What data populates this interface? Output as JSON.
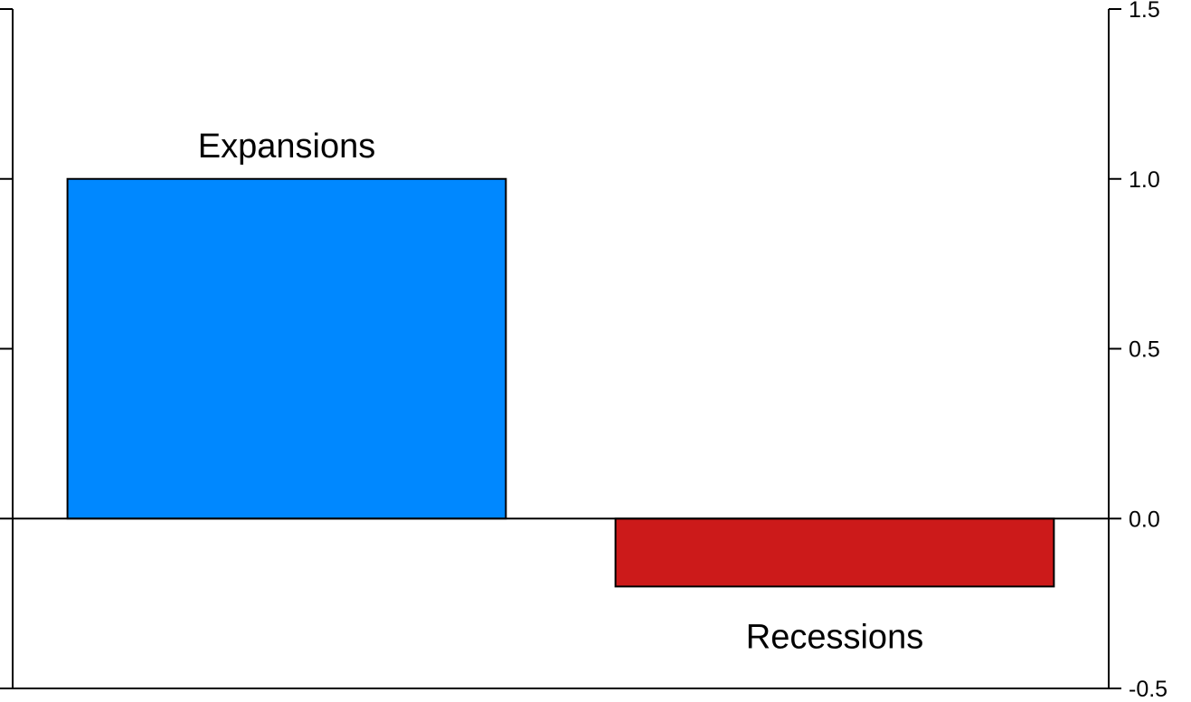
{
  "chart_data": {
    "type": "bar",
    "title": "",
    "xlabel": "",
    "ylabel": "",
    "categories": [
      "Expansions",
      "Recessions"
    ],
    "values": [
      1.0,
      -0.2
    ],
    "colors": [
      "#0088ff",
      "#cc1a1a"
    ],
    "ylim": [
      -0.5,
      1.5
    ],
    "y_ticks": [
      1.5,
      1.0,
      0.5,
      0.0,
      -0.5
    ],
    "y_tick_labels": [
      "1.5",
      "1.0",
      "0.5",
      "0.0",
      "-0.5"
    ],
    "y_axis_side": "right",
    "grid": false,
    "legend": "none"
  }
}
